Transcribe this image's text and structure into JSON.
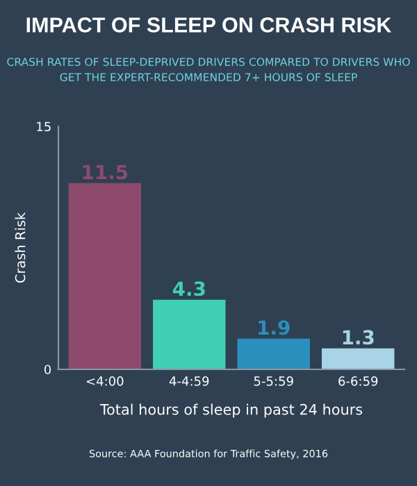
{
  "chart_data": {
    "type": "bar",
    "title": "IMPACT OF SLEEP ON CRASH RISK",
    "subtitle": "CRASH RATES OF SLEEP-DEPRIVED DRIVERS COMPARED TO DRIVERS WHO GET THE EXPERT-RECOMMENDED 7+ HOURS OF SLEEP",
    "categories": [
      "<4:00",
      "4-4:59",
      "5-5:59",
      "6-6:59"
    ],
    "values": [
      11.5,
      4.3,
      1.9,
      1.3
    ],
    "colors": [
      "#8e4a6c",
      "#3fd0b6",
      "#2b8fbd",
      "#a9d3e6"
    ],
    "data_labels": true,
    "ylabel": "Crash Risk",
    "xlabel": "Total hours of sleep in past 24 hours",
    "ylim": [
      0,
      15
    ],
    "yticks": [
      0,
      15
    ],
    "grid": false,
    "annotations": [
      "Source: AAA Foundation for Traffic Safety, 2016"
    ]
  }
}
